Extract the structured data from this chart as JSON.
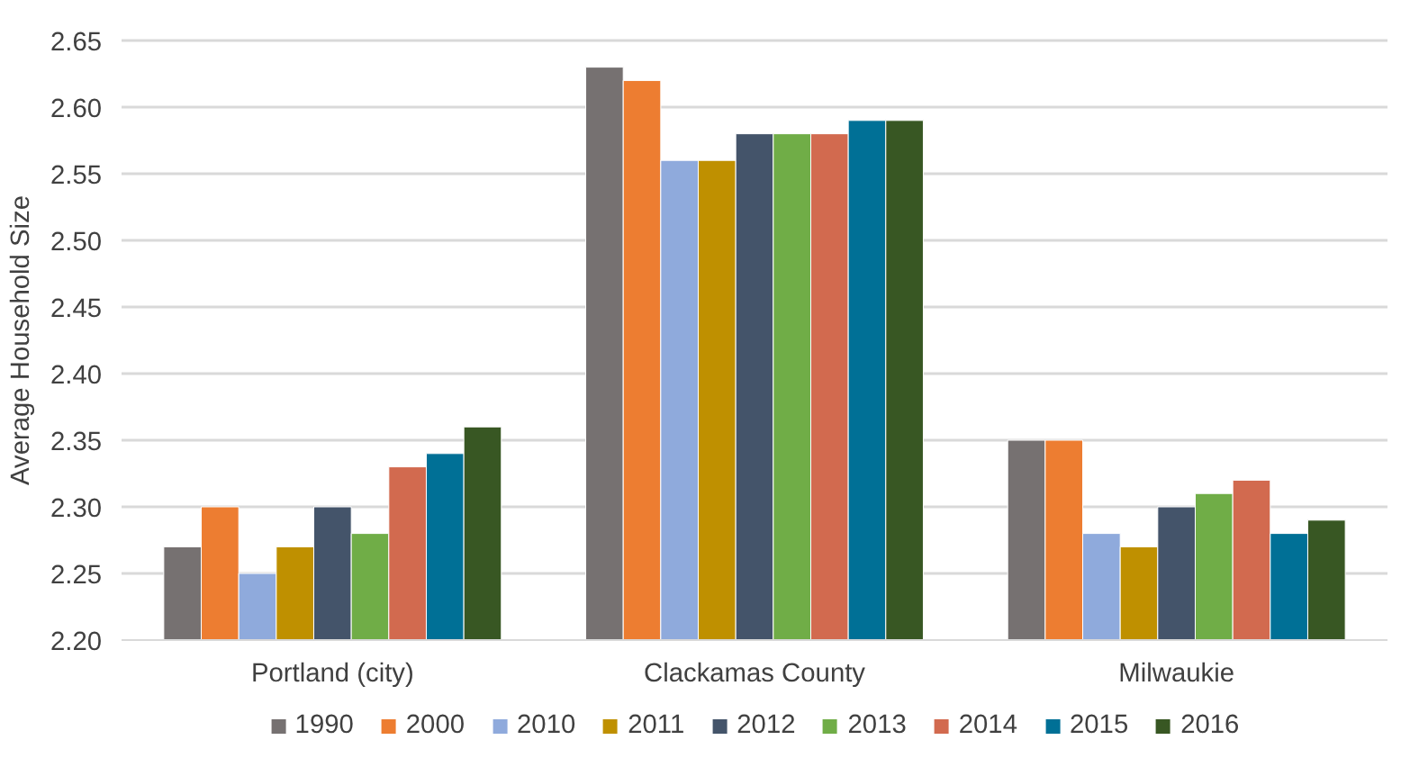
{
  "chart_data": {
    "type": "bar",
    "ylabel": "Average Household Size",
    "categories": [
      "Portland (city)",
      "Clackamas County",
      "Milwaukie"
    ],
    "series": [
      {
        "name": "1990",
        "color": "#767171",
        "values": [
          2.27,
          2.63,
          2.35
        ]
      },
      {
        "name": "2000",
        "color": "#ed7d31",
        "values": [
          2.3,
          2.62,
          2.35
        ]
      },
      {
        "name": "2010",
        "color": "#8faadc",
        "values": [
          2.25,
          2.56,
          2.28
        ]
      },
      {
        "name": "2011",
        "color": "#bf9000",
        "values": [
          2.27,
          2.56,
          2.27
        ]
      },
      {
        "name": "2012",
        "color": "#44546a",
        "values": [
          2.3,
          2.58,
          2.3
        ]
      },
      {
        "name": "2013",
        "color": "#70ad47",
        "values": [
          2.28,
          2.58,
          2.31
        ]
      },
      {
        "name": "2014",
        "color": "#d26a4f",
        "values": [
          2.33,
          2.58,
          2.32
        ]
      },
      {
        "name": "2015",
        "color": "#007096",
        "values": [
          2.34,
          2.59,
          2.28
        ]
      },
      {
        "name": "2016",
        "color": "#385723",
        "values": [
          2.36,
          2.59,
          2.29
        ]
      }
    ],
    "ylim": [
      2.2,
      2.65
    ],
    "yticks": [
      {
        "value": 2.2,
        "label": "2.20"
      },
      {
        "value": 2.25,
        "label": "2.25"
      },
      {
        "value": 2.3,
        "label": "2.30"
      },
      {
        "value": 2.35,
        "label": "2.35"
      },
      {
        "value": 2.4,
        "label": "2.40"
      },
      {
        "value": 2.45,
        "label": "2.45"
      },
      {
        "value": 2.5,
        "label": "2.50"
      },
      {
        "value": 2.55,
        "label": "2.55"
      },
      {
        "value": 2.6,
        "label": "2.60"
      },
      {
        "value": 2.65,
        "label": "2.65"
      }
    ],
    "grid": "y",
    "legend": "bottom"
  }
}
